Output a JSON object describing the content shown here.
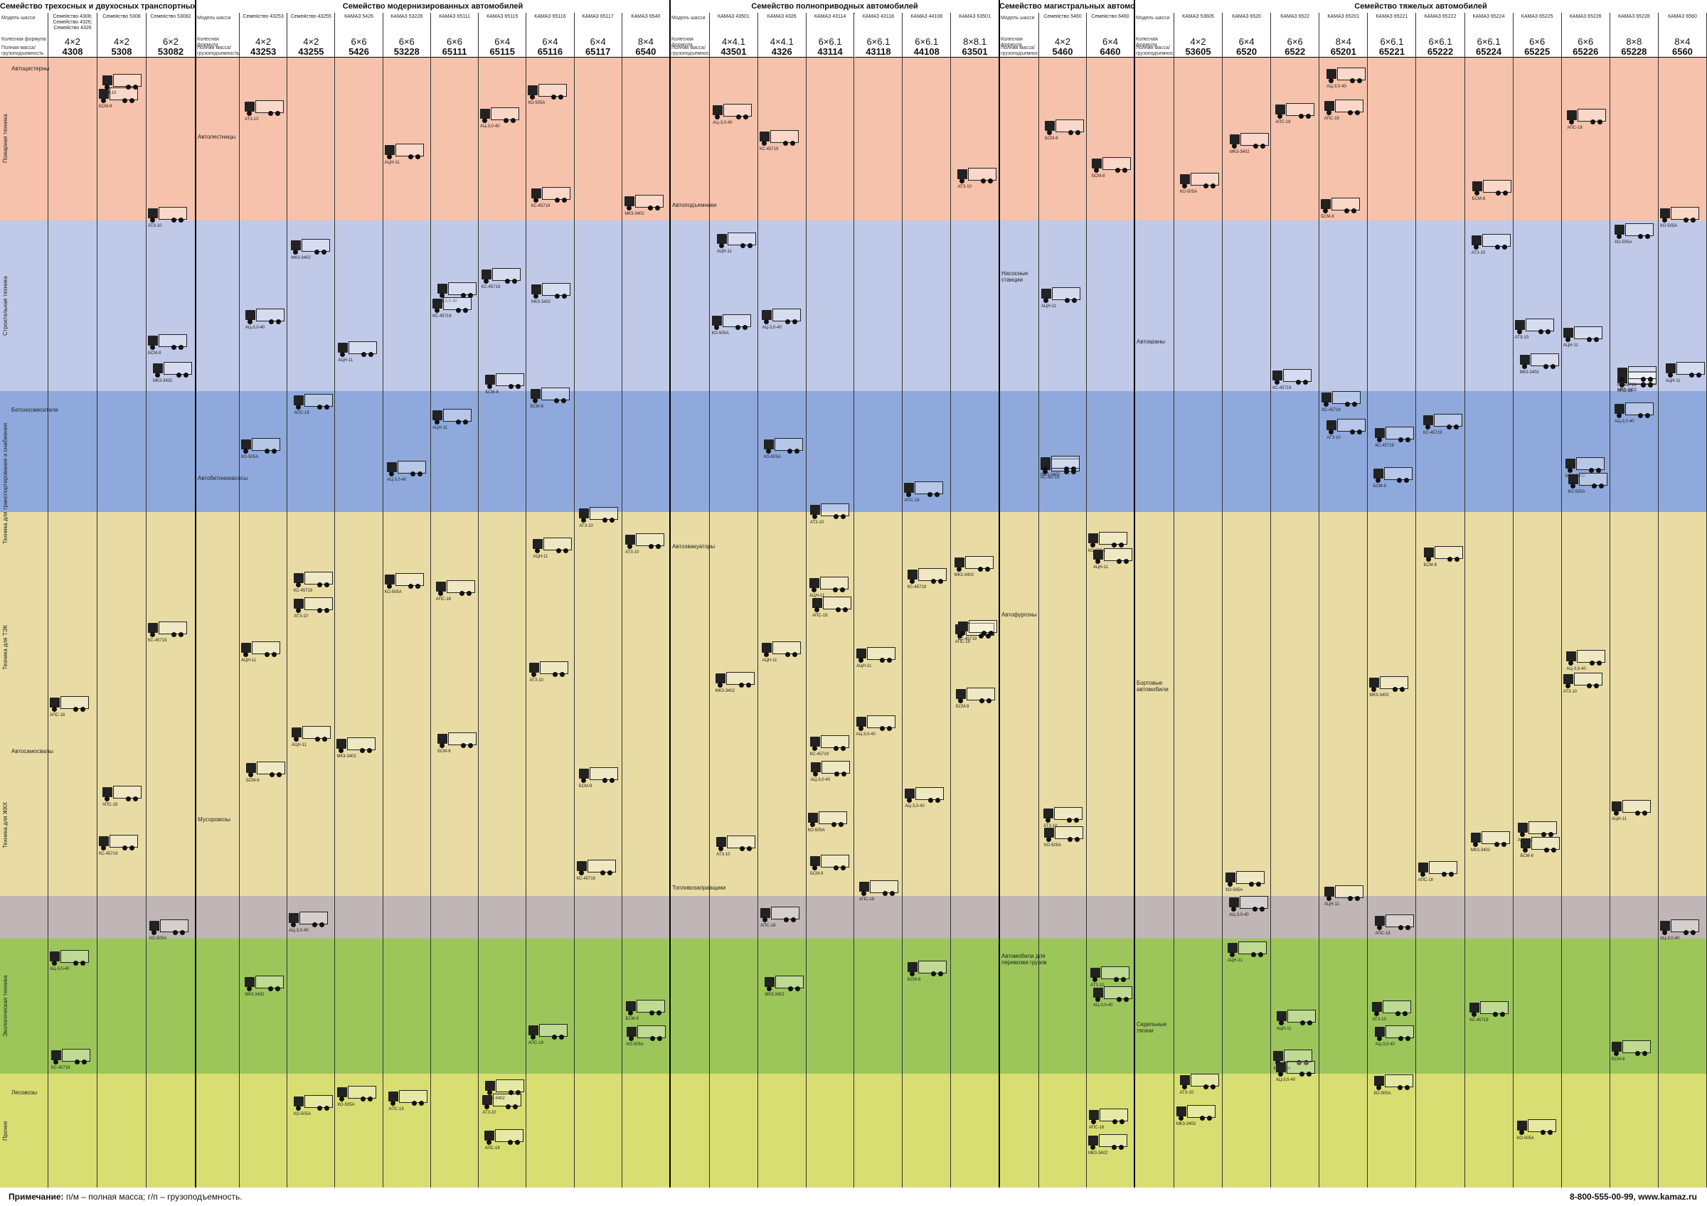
{
  "colors": {
    "pink": "#f6c2ac",
    "lavender": "#c1c9e8",
    "blue": "#8fa9dc",
    "sand": "#e8dca4",
    "gray": "#c0b5b7",
    "green": "#9cc65a",
    "yellowgreen": "#d9de72"
  },
  "groups": [
    {
      "title": "Семейство трехосных и двухосных транспортных автомобилей"
    },
    {
      "title": "Семейство модернизированных автомобилей"
    },
    {
      "title": "Семейство полноприводных автомобилей"
    },
    {
      "title": "Семейство магистральных автомобилей"
    },
    {
      "title": "Семейство тяжелых автомобилей"
    }
  ],
  "row_labels": {
    "model": "Модель шасси",
    "wheel": "Колесная формула",
    "mass": "Полная масса/грузоподъемность"
  },
  "columns": [
    {
      "group": 0,
      "sub": "Семейство 4308; Семейство 4326; Семейство 4326",
      "wf": "4×2",
      "model": "4308"
    },
    {
      "group": 0,
      "sub": "Семейство 5308",
      "wf": "4×2",
      "model": "5308"
    },
    {
      "group": 0,
      "sub": "Семейство 53082",
      "wf": "6×2",
      "model": "53082"
    },
    {
      "group": 1,
      "sub": "Семейство 43253",
      "wf": "4×2",
      "model": "43253"
    },
    {
      "group": 1,
      "sub": "Семейство 43255",
      "wf": "4×2",
      "model": "43255"
    },
    {
      "group": 1,
      "sub": "КАМАЗ 5426",
      "wf": "6×6",
      "model": "5426"
    },
    {
      "group": 1,
      "sub": "КАМАЗ 53228",
      "wf": "6×6",
      "model": "53228"
    },
    {
      "group": 1,
      "sub": "КАМАЗ 65111",
      "wf": "6×6",
      "model": "65111"
    },
    {
      "group": 1,
      "sub": "КАМАЗ 65115",
      "wf": "6×4",
      "model": "65115"
    },
    {
      "group": 1,
      "sub": "КАМАЗ 65116",
      "wf": "6×4",
      "model": "65116"
    },
    {
      "group": 1,
      "sub": "КАМАЗ 65117",
      "wf": "6×4",
      "model": "65117"
    },
    {
      "group": 1,
      "sub": "КАМАЗ 6540",
      "wf": "8×4",
      "model": "6540"
    },
    {
      "group": 2,
      "sub": "КАМАЗ 43501",
      "wf": "4×4.1",
      "model": "43501"
    },
    {
      "group": 2,
      "sub": "КАМАЗ 4326",
      "wf": "4×4.1",
      "model": "4326"
    },
    {
      "group": 2,
      "sub": "КАМАЗ 43114",
      "wf": "6×6.1",
      "model": "43114"
    },
    {
      "group": 2,
      "sub": "КАМАЗ 43118",
      "wf": "6×6.1",
      "model": "43118"
    },
    {
      "group": 2,
      "sub": "КАМАЗ 44108",
      "wf": "6×6.1",
      "model": "44108"
    },
    {
      "group": 2,
      "sub": "КАМАЗ 63501",
      "wf": "8×8.1",
      "model": "63501"
    },
    {
      "group": 3,
      "sub": "Семейство 5460",
      "wf": "4×2",
      "model": "5460"
    },
    {
      "group": 3,
      "sub": "Семейство 6460",
      "wf": "6×4",
      "model": "6460"
    },
    {
      "group": 4,
      "sub": "КАМАЗ 53605",
      "wf": "4×2",
      "model": "53605"
    },
    {
      "group": 4,
      "sub": "КАМАЗ 6520",
      "wf": "6×4",
      "model": "6520"
    },
    {
      "group": 4,
      "sub": "КАМАЗ 6522",
      "wf": "6×6",
      "model": "6522"
    },
    {
      "group": 4,
      "sub": "КАМАЗ 65201",
      "wf": "8×4",
      "model": "65201"
    },
    {
      "group": 4,
      "sub": "КАМАЗ 65221",
      "wf": "6×6.1",
      "model": "65221"
    },
    {
      "group": 4,
      "sub": "КАМАЗ 65222",
      "wf": "6×6.1",
      "model": "65222"
    },
    {
      "group": 4,
      "sub": "КАМАЗ 65224",
      "wf": "6×6.1",
      "model": "65224"
    },
    {
      "group": 4,
      "sub": "КАМАЗ 65225",
      "wf": "6×6",
      "model": "65225"
    },
    {
      "group": 4,
      "sub": "КАМАЗ 65226",
      "wf": "6×6",
      "model": "65226"
    },
    {
      "group": 4,
      "sub": "КАМАЗ 65228",
      "wf": "8×8",
      "model": "65228"
    },
    {
      "group": 4,
      "sub": "КАМАЗ 6560",
      "wf": "8×4",
      "model": "6560"
    }
  ],
  "side_sections": [
    {
      "label": "Пожарная техника"
    },
    {
      "label": "Строительная техника"
    },
    {
      "label": "Техника для транспортирования и снабжения"
    },
    {
      "label": "Техника для ТЭК"
    },
    {
      "label": "Техника для ЖКХ"
    },
    {
      "label": "Экологическая техника"
    },
    {
      "label": "Прочие"
    }
  ],
  "category_labels": [
    "Автоцистерны",
    "Автолестницы",
    "Автоподъемники",
    "Насосные станции",
    "Автокраны",
    "Бетоносмесители",
    "Автобетононасосы",
    "Автоэвакуаторы",
    "Автофургоны",
    "Бортовые автомобили",
    "Автосамосвалы",
    "Мусоровозы",
    "Топливозаправщики",
    "Автомобили для перевозки грузов",
    "Седельные тягачи",
    "Лесовозы"
  ],
  "truck_captions": [
    "АЦ-3,0-40",
    "АПС-18",
    "КС-45719",
    "БСМ-8",
    "АТЗ-10",
    "МКЗ-3402",
    "КО-505А",
    "АЦН-11"
  ],
  "footnote": {
    "label": "Примечание:",
    "text": " п/м – полная масса; г/п – грузоподъемность."
  },
  "contact": "8-800-555-00-99, www.kamaz.ru"
}
